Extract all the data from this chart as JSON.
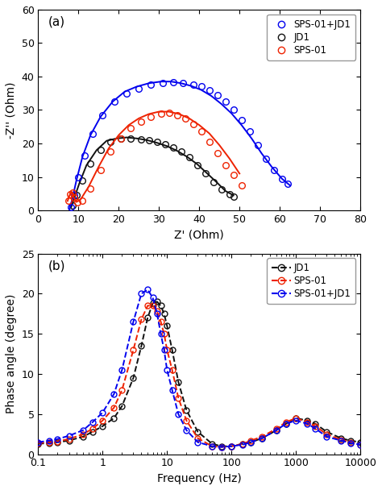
{
  "fig_width": 4.74,
  "fig_height": 6.08,
  "dpi": 100,
  "background": "#ffffff",
  "panel_a": {
    "label": "(a)",
    "xlabel": "Z' (Ohm)",
    "ylabel": "-Z'' (Ohm)",
    "xlim": [
      0,
      80
    ],
    "ylim": [
      0,
      60
    ],
    "xticks": [
      0,
      10,
      20,
      30,
      40,
      50,
      60,
      70,
      80
    ],
    "yticks": [
      0,
      10,
      20,
      30,
      40,
      50,
      60
    ],
    "legend": [
      {
        "label": "SPS-01+JD1",
        "color": "#0000ee"
      },
      {
        "label": "JD1",
        "color": "#111111"
      },
      {
        "label": "SPS-01",
        "color": "#ee2200"
      }
    ],
    "SPS01_JD1_exp_zreal": [
      8.2,
      9.0,
      10.0,
      11.5,
      13.5,
      16.0,
      19.0,
      22.0,
      25.0,
      28.0,
      31.0,
      33.5,
      36.0,
      38.5,
      40.5,
      42.5,
      44.5,
      46.5,
      48.5,
      50.5,
      52.5,
      54.5,
      56.5,
      58.5,
      60.5,
      62.0
    ],
    "SPS01_JD1_exp_zimag": [
      1.0,
      4.5,
      10.0,
      16.5,
      23.0,
      28.5,
      32.5,
      35.0,
      36.5,
      37.5,
      38.0,
      38.2,
      38.0,
      37.5,
      37.0,
      36.0,
      34.5,
      32.5,
      30.0,
      27.0,
      23.5,
      19.5,
      15.5,
      12.0,
      9.5,
      8.0
    ],
    "SPS01_JD1_fit_zreal": [
      7.8,
      8.5,
      9.5,
      11.0,
      13.0,
      15.5,
      18.5,
      21.5,
      24.5,
      27.5,
      30.5,
      33.0,
      35.5,
      38.0,
      40.5,
      43.0,
      45.5,
      48.0,
      50.5,
      53.0,
      55.5,
      58.0,
      60.5,
      62.5
    ],
    "SPS01_JD1_fit_zimag": [
      0.5,
      3.5,
      9.0,
      16.0,
      22.5,
      28.0,
      32.5,
      35.5,
      37.0,
      38.0,
      38.5,
      38.5,
      38.0,
      37.2,
      36.0,
      34.2,
      31.8,
      29.0,
      25.5,
      21.5,
      17.0,
      13.0,
      9.5,
      7.5
    ],
    "JD1_exp_zreal": [
      8.5,
      9.5,
      11.0,
      13.0,
      15.5,
      18.0,
      20.5,
      23.0,
      25.5,
      27.5,
      29.5,
      31.5,
      33.5,
      35.5,
      37.5,
      39.5,
      41.5,
      43.5,
      45.5,
      47.5,
      48.5
    ],
    "JD1_exp_zimag": [
      1.5,
      4.5,
      9.0,
      14.0,
      18.0,
      20.5,
      21.5,
      21.5,
      21.2,
      21.0,
      20.5,
      19.8,
      18.8,
      17.5,
      15.8,
      13.5,
      11.0,
      8.5,
      6.2,
      4.8,
      4.2
    ],
    "JD1_fit_zreal": [
      8.2,
      9.0,
      10.2,
      12.0,
      14.5,
      17.0,
      19.5,
      22.0,
      24.5,
      27.0,
      29.5,
      32.0,
      34.5,
      37.0,
      39.5,
      42.0,
      44.5,
      46.5,
      48.5
    ],
    "JD1_fit_zimag": [
      1.0,
      3.8,
      8.0,
      13.5,
      18.0,
      20.8,
      21.5,
      21.8,
      21.5,
      21.0,
      20.2,
      19.2,
      17.8,
      16.0,
      13.8,
      11.0,
      8.2,
      5.8,
      4.5
    ],
    "SPS01_exp_zreal": [
      7.5,
      8.0,
      8.5,
      9.0,
      9.8,
      11.0,
      13.0,
      15.5,
      18.0,
      20.5,
      23.0,
      25.5,
      28.0,
      30.5,
      32.5,
      34.5,
      36.5,
      38.5,
      40.5,
      42.5,
      44.5,
      46.5,
      48.5,
      50.5
    ],
    "SPS01_exp_zimag": [
      3.0,
      4.8,
      5.2,
      3.8,
      2.5,
      3.0,
      6.5,
      12.0,
      17.5,
      21.5,
      24.5,
      26.5,
      28.0,
      29.0,
      29.2,
      28.5,
      27.5,
      25.8,
      23.5,
      20.5,
      17.0,
      13.5,
      10.5,
      7.5
    ],
    "SPS01_fit_zreal": [
      7.3,
      7.8,
      8.3,
      8.8,
      9.5,
      10.5,
      12.5,
      15.0,
      17.5,
      20.0,
      22.5,
      25.0,
      27.5,
      30.0,
      32.5,
      35.0,
      37.5,
      40.0,
      42.5,
      45.0,
      47.5,
      50.0
    ],
    "SPS01_fit_zimag": [
      2.8,
      4.5,
      5.5,
      4.0,
      2.5,
      3.2,
      7.0,
      13.0,
      18.5,
      22.5,
      25.5,
      27.5,
      28.8,
      29.5,
      29.5,
      28.8,
      27.5,
      25.5,
      23.0,
      19.5,
      15.5,
      11.0
    ]
  },
  "panel_b": {
    "label": "(b)",
    "xlabel": "Frequency (Hz)",
    "ylabel": "Phase angle (degree)",
    "xlim": [
      0.1,
      10000
    ],
    "ylim": [
      0,
      25
    ],
    "yticks": [
      0,
      5,
      10,
      15,
      20,
      25
    ],
    "legend": [
      {
        "label": "JD1",
        "color": "#111111"
      },
      {
        "label": "SPS-01",
        "color": "#ee2200"
      },
      {
        "label": "SPS-01+JD1",
        "color": "#0000ee"
      }
    ],
    "JD1_freq": [
      0.1,
      0.15,
      0.2,
      0.3,
      0.5,
      0.7,
      1.0,
      1.5,
      2.0,
      3.0,
      4.0,
      5.0,
      6.0,
      7.0,
      8.0,
      9.0,
      10.0,
      12.0,
      15.0,
      20.0,
      30.0,
      50.0,
      70.0,
      100.0,
      150.0,
      200.0,
      300.0,
      500.0,
      700.0,
      1000.0,
      1500.0,
      2000.0,
      3000.0,
      5000.0,
      7000.0,
      10000.0
    ],
    "JD1_phase": [
      1.3,
      1.4,
      1.5,
      1.7,
      2.2,
      2.8,
      3.5,
      4.5,
      6.0,
      9.5,
      13.5,
      17.0,
      18.8,
      19.0,
      18.5,
      17.5,
      16.0,
      13.0,
      9.0,
      5.5,
      2.8,
      1.3,
      1.0,
      1.0,
      1.3,
      1.5,
      2.0,
      3.0,
      3.8,
      4.5,
      4.2,
      3.8,
      2.8,
      2.0,
      1.7,
      1.5
    ],
    "SPS01_freq": [
      0.1,
      0.15,
      0.2,
      0.3,
      0.5,
      0.7,
      1.0,
      1.5,
      2.0,
      3.0,
      4.0,
      5.0,
      6.0,
      7.0,
      8.0,
      9.0,
      10.0,
      12.0,
      15.0,
      20.0,
      30.0,
      50.0,
      70.0,
      100.0,
      150.0,
      200.0,
      300.0,
      500.0,
      700.0,
      1000.0,
      1500.0,
      2000.0,
      3000.0,
      5000.0,
      7000.0,
      10000.0
    ],
    "SPS01_phase": [
      1.4,
      1.5,
      1.6,
      1.9,
      2.5,
      3.2,
      4.2,
      5.8,
      8.0,
      13.0,
      16.8,
      18.5,
      18.5,
      17.8,
      16.5,
      15.0,
      13.0,
      10.5,
      7.0,
      4.2,
      2.0,
      1.0,
      0.9,
      1.0,
      1.3,
      1.7,
      2.2,
      3.2,
      4.0,
      4.5,
      4.0,
      3.5,
      2.5,
      1.8,
      1.5,
      1.2
    ],
    "SPS01JD1_freq": [
      0.1,
      0.15,
      0.2,
      0.3,
      0.5,
      0.7,
      1.0,
      1.5,
      2.0,
      3.0,
      4.0,
      5.0,
      6.0,
      7.0,
      8.0,
      9.0,
      10.0,
      12.0,
      15.0,
      20.0,
      30.0,
      50.0,
      70.0,
      100.0,
      150.0,
      200.0,
      300.0,
      500.0,
      700.0,
      1000.0,
      1500.0,
      2000.0,
      3000.0,
      5000.0,
      7000.0,
      10000.0
    ],
    "SPS01JD1_phase": [
      1.5,
      1.7,
      1.9,
      2.3,
      3.0,
      4.0,
      5.2,
      7.5,
      10.5,
      16.5,
      20.0,
      20.5,
      19.5,
      17.5,
      15.0,
      13.0,
      10.5,
      8.0,
      5.0,
      3.0,
      1.5,
      1.0,
      0.9,
      1.0,
      1.2,
      1.5,
      2.0,
      3.0,
      3.8,
      4.2,
      3.8,
      3.2,
      2.2,
      1.7,
      1.4,
      1.2
    ]
  }
}
